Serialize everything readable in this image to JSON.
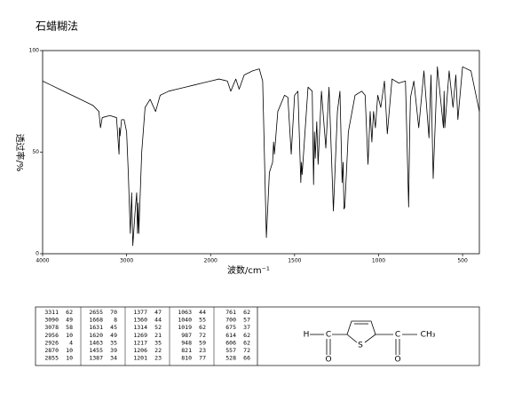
{
  "chart_data": {
    "type": "line",
    "title": "石蜡糊法",
    "xlabel": "波数/cm⁻¹",
    "ylabel": "透过率/%",
    "xlim": [
      4000,
      400
    ],
    "xticks": [
      4000,
      3000,
      2000,
      1500,
      1000,
      500
    ],
    "ylim": [
      0,
      100
    ],
    "yticks": [
      0,
      50,
      100
    ],
    "color": "#000000",
    "x": [
      4000,
      3900,
      3800,
      3700,
      3600,
      3500,
      3400,
      3330,
      3311,
      3290,
      3200,
      3120,
      3090,
      3084,
      3078,
      3060,
      3030,
      3000,
      2980,
      2956,
      2940,
      2926,
      2900,
      2880,
      2870,
      2862,
      2855,
      2820,
      2780,
      2720,
      2655,
      2600,
      2500,
      2400,
      2300,
      2200,
      2100,
      2000,
      1950,
      1900,
      1880,
      1850,
      1830,
      1800,
      1750,
      1710,
      1690,
      1668,
      1650,
      1631,
      1625,
      1620,
      1600,
      1560,
      1540,
      1520,
      1500,
      1480,
      1463,
      1459,
      1455,
      1420,
      1395,
      1387,
      1382,
      1377,
      1368,
      1360,
      1340,
      1314,
      1295,
      1269,
      1245,
      1230,
      1217,
      1211,
      1206,
      1201,
      1180,
      1140,
      1100,
      1080,
      1063,
      1050,
      1040,
      1030,
      1019,
      1005,
      987,
      965,
      948,
      920,
      880,
      840,
      821,
      815,
      810,
      790,
      761,
      730,
      700,
      688,
      675,
      650,
      614,
      610,
      606,
      580,
      557,
      540,
      528,
      500,
      450,
      400
    ],
    "values": [
      85,
      83,
      81,
      79,
      77,
      75,
      73,
      70,
      62,
      67,
      68,
      67,
      49,
      62,
      58,
      66,
      66,
      60,
      40,
      10,
      30,
      4,
      20,
      30,
      10,
      25,
      10,
      50,
      72,
      76,
      70,
      78,
      80,
      81,
      82,
      83,
      84,
      85,
      86,
      85,
      80,
      86,
      81,
      88,
      90,
      91,
      85,
      8,
      40,
      45,
      55,
      49,
      70,
      78,
      77,
      49,
      78,
      80,
      35,
      45,
      39,
      82,
      80,
      34,
      60,
      47,
      65,
      44,
      80,
      52,
      82,
      21,
      70,
      80,
      35,
      45,
      22,
      23,
      60,
      78,
      80,
      78,
      44,
      70,
      55,
      70,
      62,
      78,
      72,
      85,
      59,
      86,
      84,
      85,
      23,
      60,
      77,
      85,
      62,
      90,
      57,
      88,
      37,
      92,
      62,
      80,
      62,
      90,
      72,
      88,
      66,
      92,
      90,
      70
    ]
  },
  "peak_table": {
    "columns": [
      [
        [
          3311,
          62
        ],
        [
          3090,
          49
        ],
        [
          3078,
          58
        ],
        [
          2956,
          10
        ],
        [
          2926,
          4
        ],
        [
          2870,
          10
        ],
        [
          2855,
          10
        ]
      ],
      [
        [
          2655,
          70
        ],
        [
          1668,
          8
        ],
        [
          1631,
          45
        ],
        [
          1620,
          49
        ],
        [
          1463,
          35
        ],
        [
          1455,
          39
        ],
        [
          1387,
          34
        ]
      ],
      [
        [
          1377,
          47
        ],
        [
          1360,
          44
        ],
        [
          1314,
          52
        ],
        [
          1269,
          21
        ],
        [
          1217,
          35
        ],
        [
          1206,
          22
        ],
        [
          1201,
          23
        ]
      ],
      [
        [
          1063,
          44
        ],
        [
          1040,
          55
        ],
        [
          1019,
          62
        ],
        [
          987,
          72
        ],
        [
          948,
          59
        ],
        [
          821,
          23
        ],
        [
          810,
          77
        ]
      ],
      [
        [
          761,
          62
        ],
        [
          700,
          57
        ],
        [
          675,
          37
        ],
        [
          614,
          62
        ],
        [
          606,
          62
        ],
        [
          557,
          72
        ],
        [
          528,
          66
        ]
      ]
    ]
  },
  "structure": {
    "atoms": [
      "H",
      "C",
      "O",
      "S",
      "C",
      "CH₃",
      "O"
    ]
  }
}
